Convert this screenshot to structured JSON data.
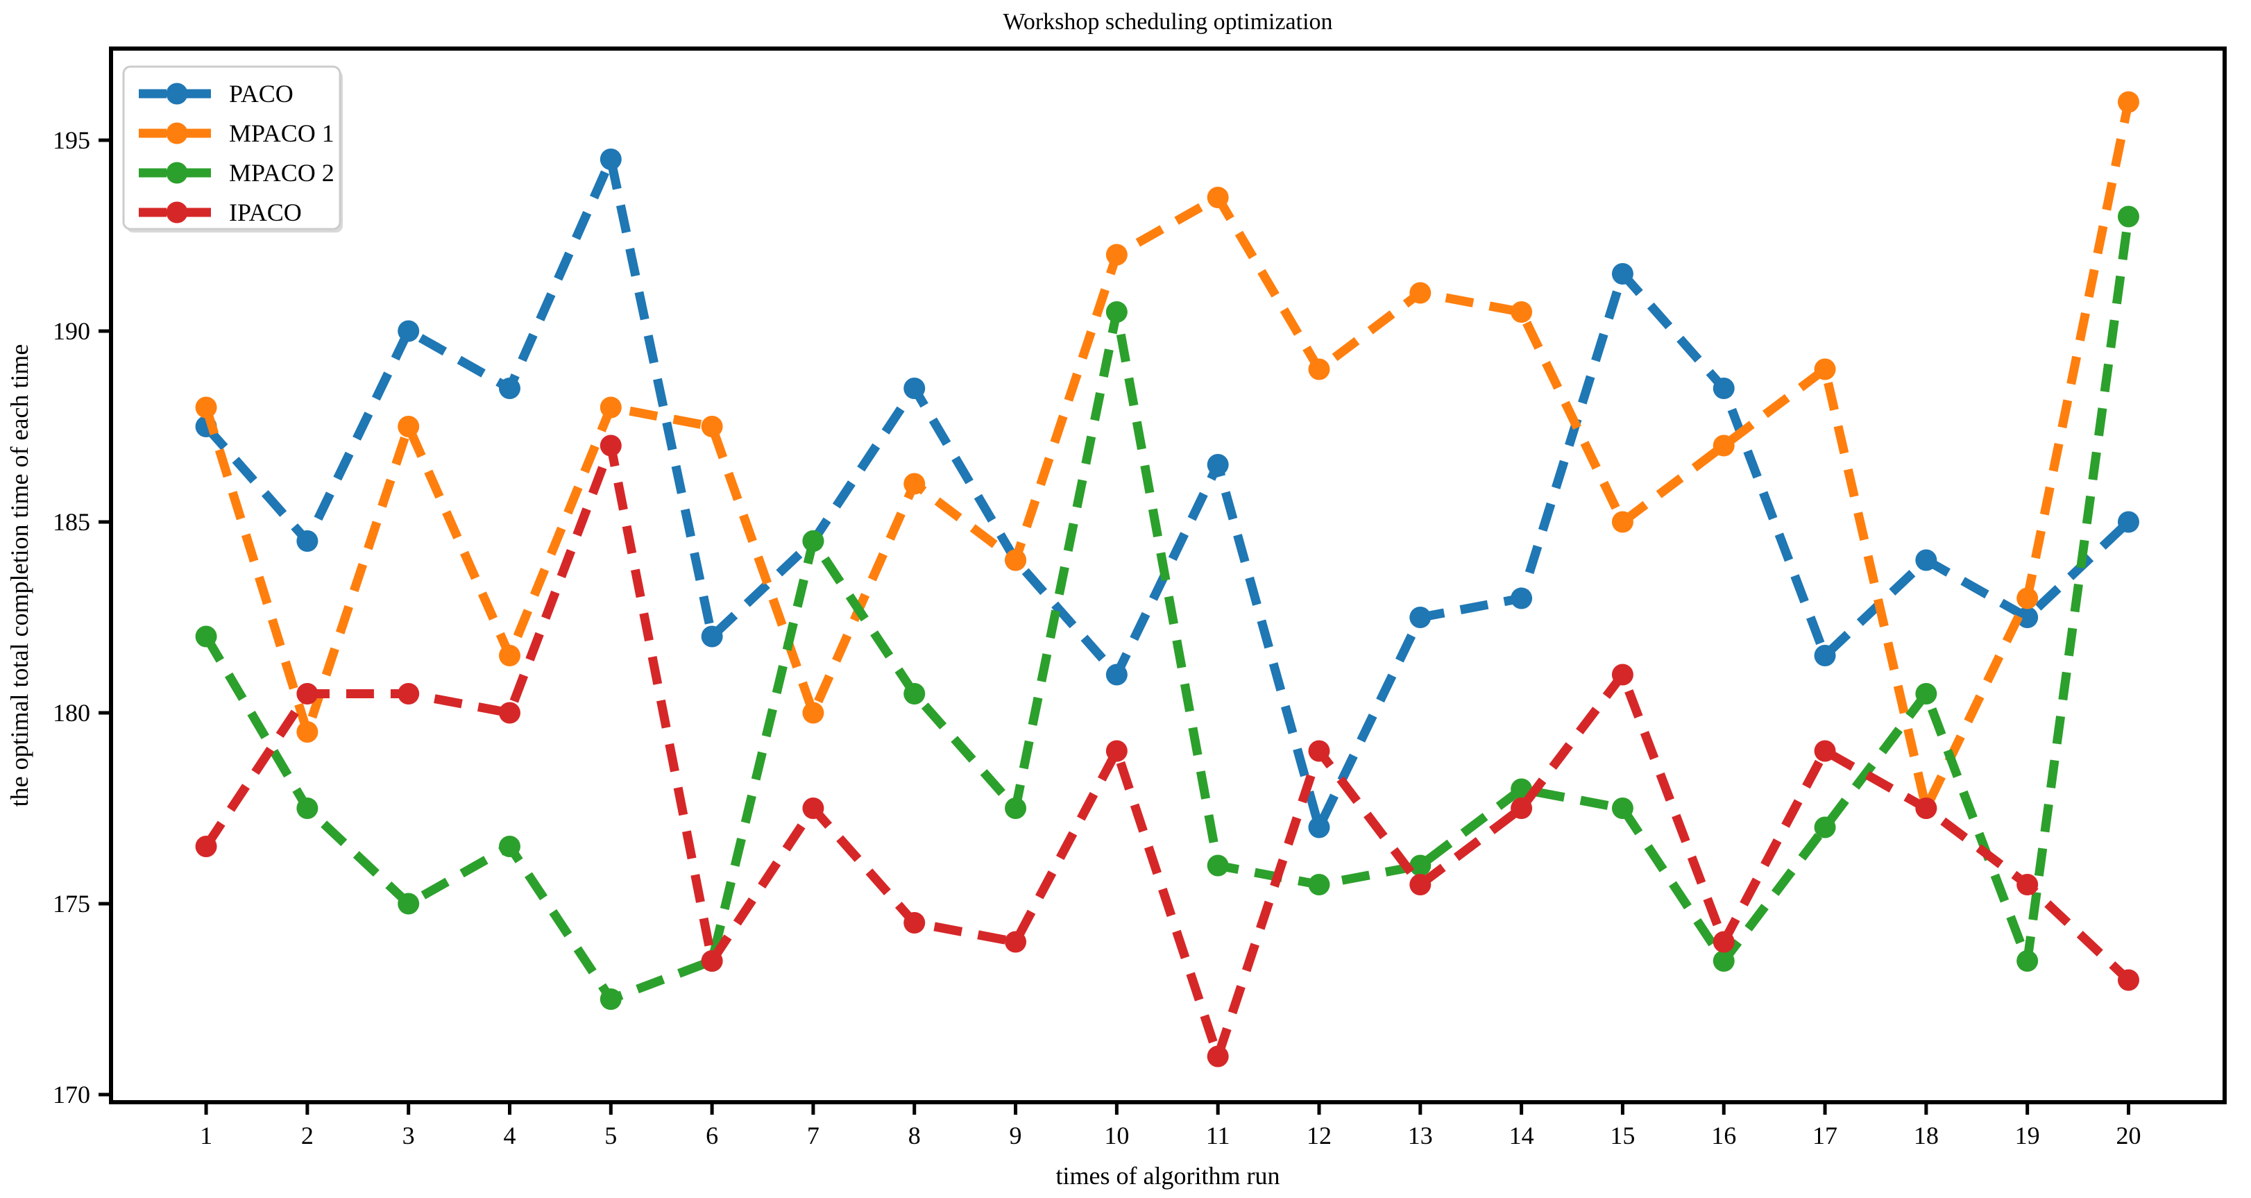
{
  "chart_data": {
    "type": "line",
    "title": "Workshop scheduling optimization",
    "xlabel": "times of algorithm run",
    "ylabel": "the optimal total completion time of each time",
    "x": [
      1,
      2,
      3,
      4,
      5,
      6,
      7,
      8,
      9,
      10,
      11,
      12,
      13,
      14,
      15,
      16,
      17,
      18,
      19,
      20
    ],
    "series": [
      {
        "name": "PACO",
        "color": "#1f77b4",
        "linestyle": "dashed",
        "marker": "circle",
        "values": [
          187.5,
          184.5,
          190,
          188.5,
          194.5,
          182,
          184.5,
          188.5,
          184,
          181,
          186.5,
          177,
          182.5,
          183,
          191.5,
          188.5,
          181.5,
          184,
          182.5,
          185
        ]
      },
      {
        "name": "MPACO 1",
        "color": "#ff7f0e",
        "linestyle": "dashed",
        "marker": "circle",
        "values": [
          188,
          179.5,
          187.5,
          181.5,
          188,
          187.5,
          180,
          186,
          184,
          192,
          193.5,
          189,
          191,
          190.5,
          185,
          187,
          189,
          177.5,
          183,
          196
        ]
      },
      {
        "name": "MPACO 2",
        "color": "#2ca02c",
        "linestyle": "dashed",
        "marker": "circle",
        "values": [
          182,
          177.5,
          175,
          176.5,
          172.5,
          173.5,
          184.5,
          180.5,
          177.5,
          190.5,
          176,
          175.5,
          176,
          178,
          177.5,
          173.5,
          177,
          180.5,
          173.5,
          193
        ]
      },
      {
        "name": "IPACO",
        "color": "#d62728",
        "linestyle": "dashed",
        "marker": "circle",
        "values": [
          176.5,
          180.5,
          180.5,
          180,
          187,
          173.5,
          177.5,
          174.5,
          174,
          179,
          171,
          179,
          175.5,
          177.5,
          181,
          174,
          179,
          177.5,
          175.5,
          173
        ]
      }
    ],
    "xticks": [
      1,
      2,
      3,
      4,
      5,
      6,
      7,
      8,
      9,
      10,
      11,
      12,
      13,
      14,
      15,
      16,
      17,
      18,
      19,
      20
    ],
    "yticks": [
      170,
      175,
      180,
      185,
      190,
      195
    ],
    "xlim": [
      0.06,
      20.95
    ],
    "ylim": [
      169.8,
      197.4
    ],
    "grid": false,
    "legend_position": "upper left",
    "axis_color": "#000000",
    "background": "#ffffff"
  }
}
